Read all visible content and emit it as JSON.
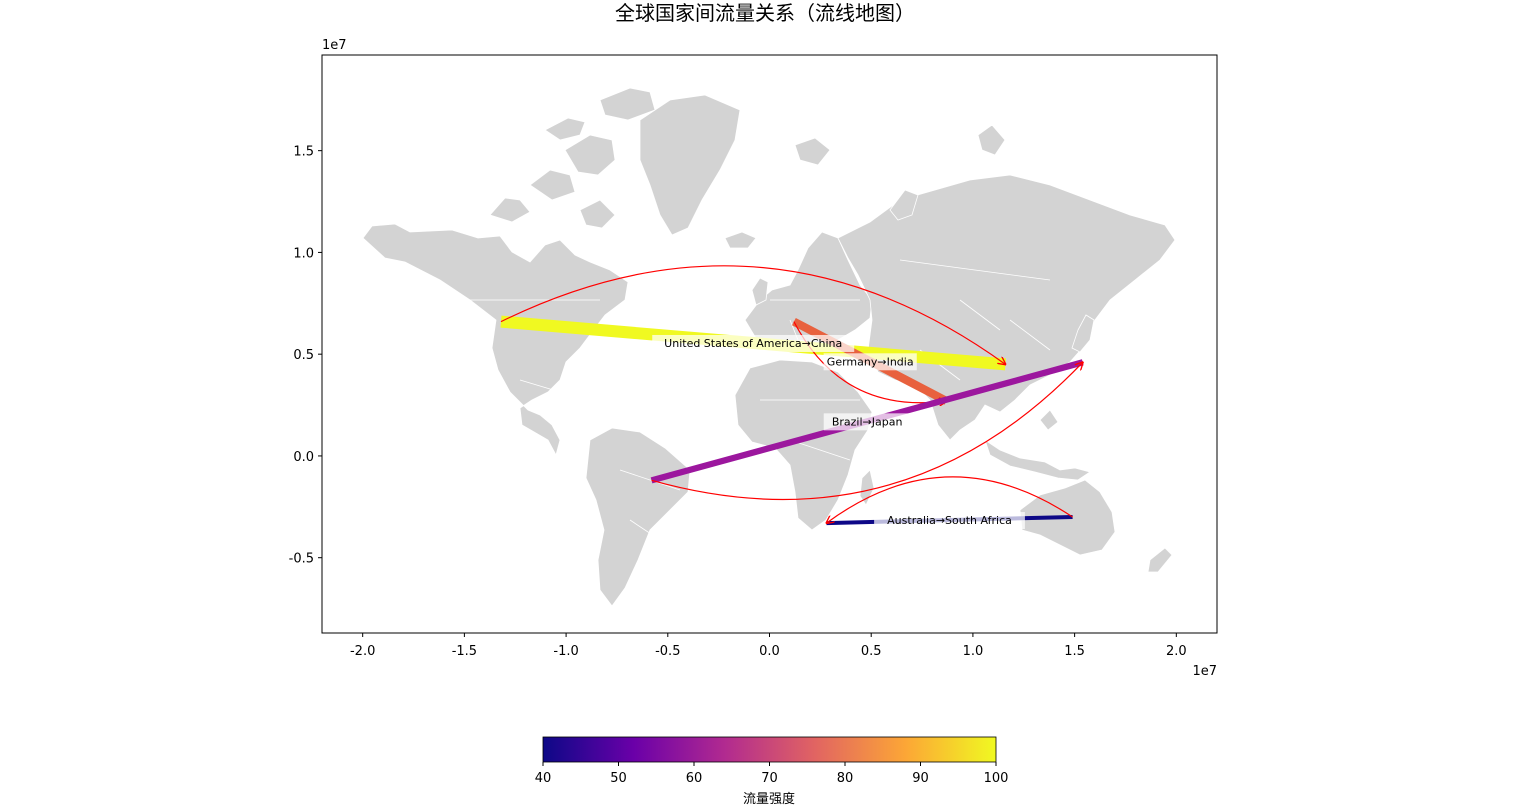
{
  "chart_data": {
    "type": "flow_map",
    "title": "全球国家间流量关系（流线地图）",
    "x_offset_text": "1e7",
    "y_offset_text": "1e7",
    "xlim": [
      -2.2,
      2.2
    ],
    "ylim": [
      -0.87,
      1.97
    ],
    "x_ticks": [
      -2.0,
      -1.5,
      -1.0,
      -0.5,
      0.0,
      0.5,
      1.0,
      1.5,
      2.0
    ],
    "x_tick_labels": [
      "-2.0",
      "-1.5",
      "-1.0",
      "-0.5",
      "0.0",
      "0.5",
      "1.0",
      "1.5",
      "2.0"
    ],
    "y_ticks": [
      -0.5,
      0.0,
      0.5,
      1.0,
      1.5
    ],
    "y_tick_labels": [
      "-0.5",
      "0.0",
      "0.5",
      "1.0",
      "1.5"
    ],
    "flows": [
      {
        "label": "United States of America→China",
        "from": [
          -1.32,
          0.66
        ],
        "to": [
          1.16,
          0.45
        ],
        "value": 100,
        "color": "#f0f921",
        "curve": -0.3
      },
      {
        "label": "Germany→India",
        "from": [
          0.12,
          0.66
        ],
        "to": [
          0.87,
          0.27
        ],
        "value": 72,
        "color": "#e8613e",
        "curve": 0.35
      },
      {
        "label": "Brazil→Japan",
        "from": [
          -0.58,
          -0.12
        ],
        "to": [
          1.54,
          0.46
        ],
        "value": 57,
        "color": "#9c179e",
        "curve": 0.3
      },
      {
        "label": "Australia→South Africa",
        "from": [
          1.49,
          -0.3
        ],
        "to": [
          0.28,
          -0.33
        ],
        "value": 40,
        "color": "#0d0887",
        "curve": 0.35
      }
    ],
    "colorbar": {
      "label": "流量强度",
      "min": 40,
      "max": 100,
      "ticks": [
        40,
        50,
        60,
        70,
        80,
        90,
        100
      ],
      "colormap": "plasma",
      "stops": [
        "#0d0887",
        "#6a00a8",
        "#b12a90",
        "#e16462",
        "#fca636",
        "#f0f921"
      ]
    },
    "land_color": "#d3d3d3",
    "border_color": "#ffffff",
    "arrow_color": "#ff0000"
  }
}
